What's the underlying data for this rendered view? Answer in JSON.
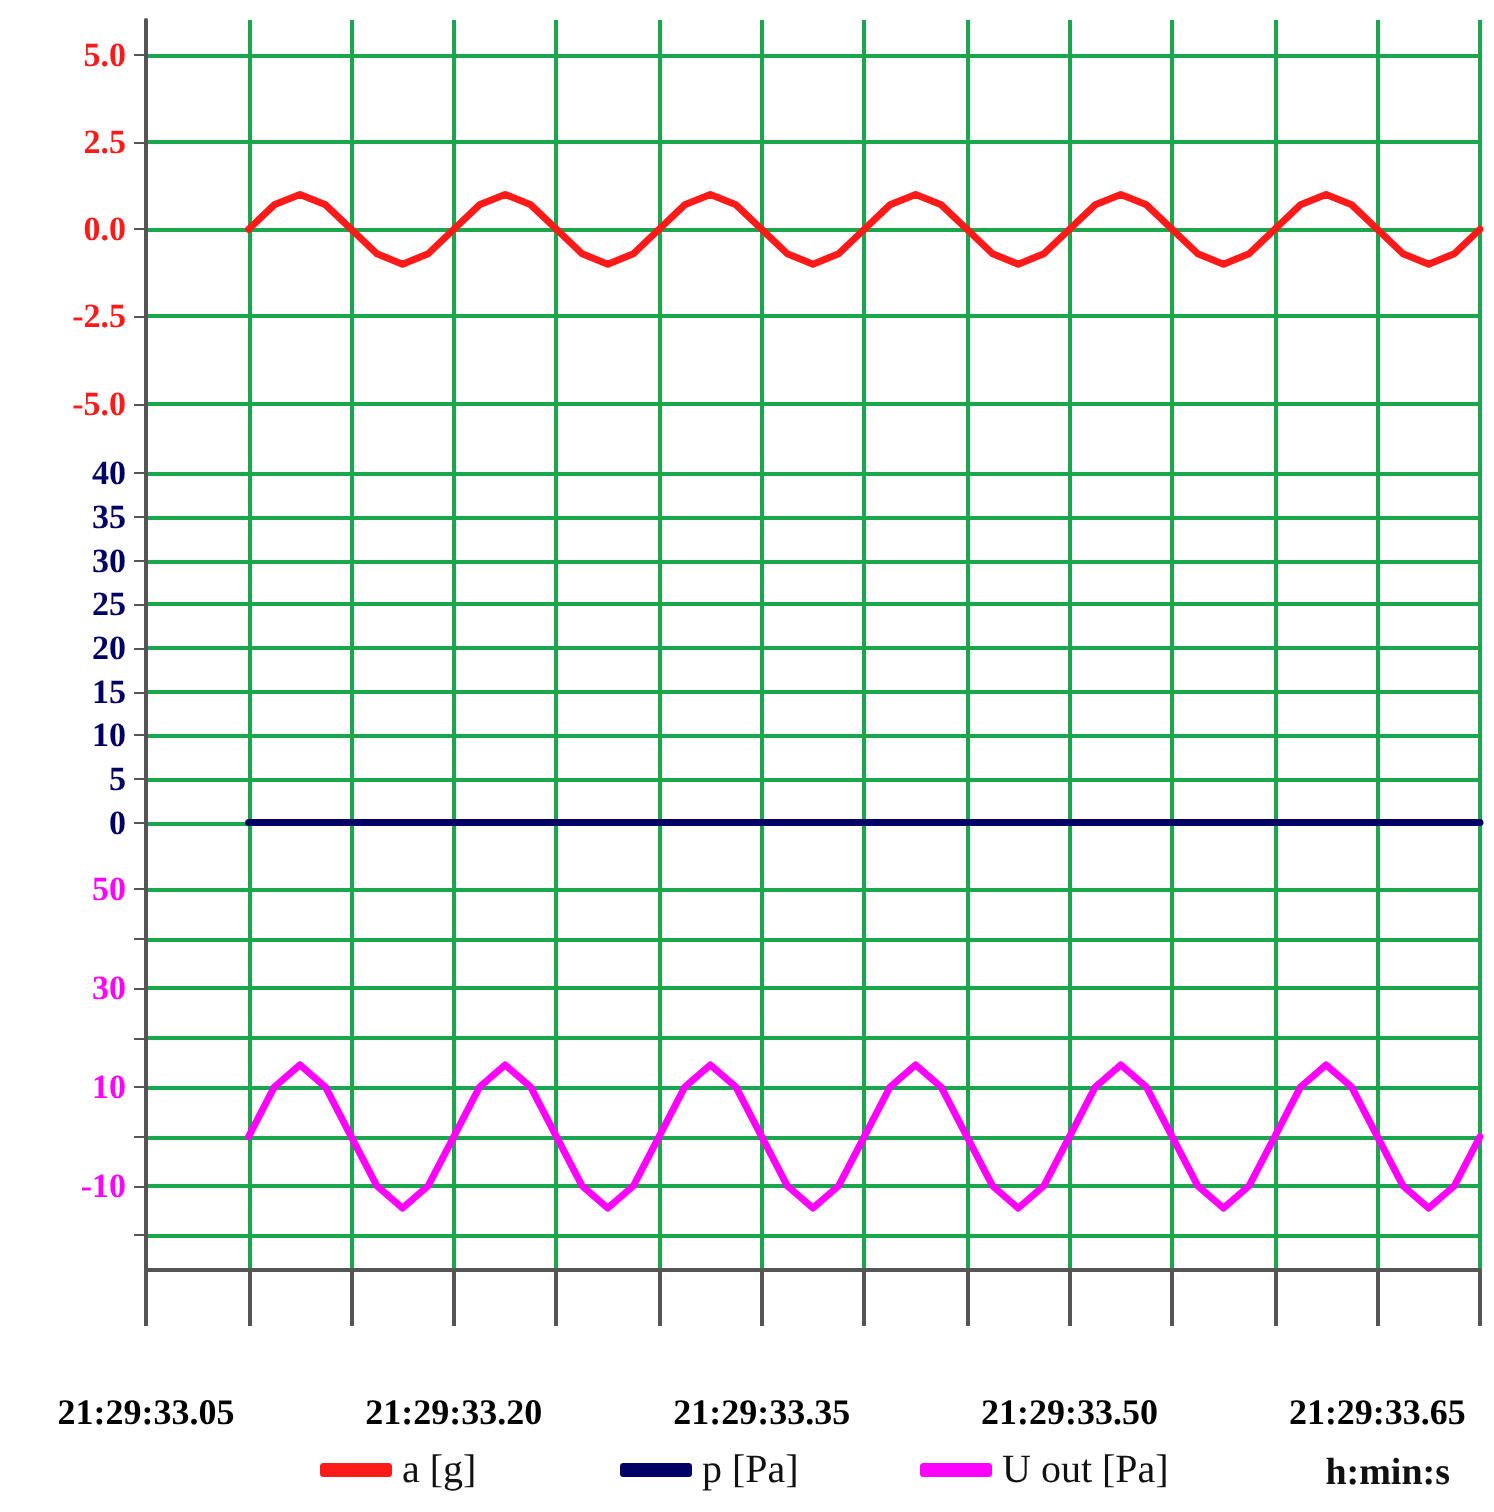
{
  "chart_data": [
    {
      "type": "line",
      "categories": [
        null,
        null,
        null,
        null,
        null,
        null,
        null,
        null,
        null,
        null,
        null,
        null,
        null,
        null,
        null,
        null,
        null,
        null,
        null,
        null,
        null,
        null,
        null,
        null,
        null,
        null,
        null,
        null,
        null,
        null,
        null,
        null,
        null,
        null,
        null,
        null,
        null,
        null,
        null,
        null,
        null,
        null,
        null,
        null,
        null,
        null,
        null,
        null,
        null,
        null,
        null,
        null,
        null
      ],
      "ylim": [
        -6.5,
        6
      ],
      "yticks": [
        {
          "value": -5,
          "label": "-5.0"
        },
        -2.5,
        {
          "value": 0,
          "label": "0.0"
        },
        2.5,
        {
          "value": 5,
          "label": "5.0"
        }
      ],
      "tick_labels": "y",
      "grid": true,
      "legend": "bottom",
      "series": [
        {
          "name": "a [g]",
          "color": "#ff1a1a",
          "values": [
            null,
            null,
            null,
            null,
            0,
            0.7,
            1,
            0.7,
            0,
            -0.7,
            -1,
            -0.7,
            0,
            0.7,
            1,
            0.7,
            0,
            -0.7,
            -1,
            -0.7,
            0,
            0.7,
            1,
            0.7,
            0,
            -0.7,
            -1,
            -0.7,
            0,
            0.7,
            1,
            0.7,
            0,
            -0.7,
            -1,
            -0.7,
            0,
            0.7,
            1,
            0.7,
            0,
            -0.7,
            -1,
            -0.7,
            0,
            0.7,
            1,
            0.7,
            0,
            -0.7,
            -1,
            -0.7,
            0
          ]
        }
      ]
    },
    {
      "type": "line",
      "categories": [
        null,
        null,
        null,
        null,
        null,
        null,
        null,
        null,
        null,
        null,
        null,
        null,
        null,
        null,
        null,
        null,
        null,
        null,
        null,
        null,
        null,
        null,
        null,
        null,
        null,
        null,
        null,
        null,
        null,
        null,
        null,
        null,
        null,
        null,
        null,
        null,
        null,
        null,
        null,
        null,
        null,
        null,
        null,
        null,
        null,
        null,
        null,
        null,
        null,
        null,
        null,
        null,
        null
      ],
      "ylim": [
        -2,
        42
      ],
      "yticks": [
        0,
        5,
        10,
        15,
        20,
        25,
        30,
        35,
        40
      ],
      "tick_labels": "y",
      "grid": true,
      "legend": "bottom",
      "series": [
        {
          "name": "p [Pa]",
          "color": "#000066",
          "values": [
            null,
            null,
            null,
            null,
            0,
            0,
            0,
            0,
            0,
            0,
            0,
            0,
            0,
            0,
            0,
            0,
            0,
            0,
            0,
            0,
            0,
            0,
            0,
            0,
            0,
            0,
            0,
            0,
            0,
            0,
            0,
            0,
            0,
            0,
            0,
            0,
            0,
            0,
            0,
            0,
            0,
            0,
            0,
            0,
            0,
            0,
            0,
            0,
            0,
            0,
            0,
            0,
            0
          ]
        }
      ]
    },
    {
      "type": "line",
      "xlabel": "h:min:s",
      "categories": [
        "21:29:33.05",
        null,
        null,
        null,
        null,
        null,
        null,
        null,
        null,
        null,
        null,
        null,
        "21:29:33.20",
        null,
        null,
        null,
        null,
        null,
        null,
        null,
        null,
        null,
        null,
        null,
        "21:29:33.35",
        null,
        null,
        null,
        null,
        null,
        null,
        null,
        null,
        null,
        null,
        null,
        "21:29:33.50",
        null,
        null,
        null,
        null,
        null,
        null,
        null,
        null,
        null,
        null,
        null,
        "21:29:33.65",
        null,
        null,
        null,
        null
      ],
      "ylim": [
        -27,
        60
      ],
      "yticks": [
        {
          "value": -20,
          "label": null
        },
        -10,
        {
          "value": 0,
          "label": null
        },
        10,
        {
          "value": 20,
          "label": null
        },
        30,
        {
          "value": 40,
          "label": null
        },
        50
      ],
      "grid": true,
      "legend": "bottom",
      "series": [
        {
          "name": "U out [Pa]",
          "color": "#ff00ff",
          "values": [
            null,
            null,
            null,
            null,
            0,
            10,
            14.5,
            10,
            0,
            -10,
            -14.5,
            -10,
            0,
            10,
            14.5,
            10,
            0,
            -10,
            -14.5,
            -10,
            0,
            10,
            14.5,
            10,
            0,
            -10,
            -14.5,
            -10,
            0,
            10,
            14.5,
            10,
            0,
            -10,
            -14.5,
            -10,
            0,
            10,
            14.5,
            10,
            0,
            -10,
            -14.5,
            -10,
            0,
            10,
            14.5,
            10,
            0,
            -10,
            -14.5,
            -10,
            0
          ]
        }
      ]
    }
  ]
}
